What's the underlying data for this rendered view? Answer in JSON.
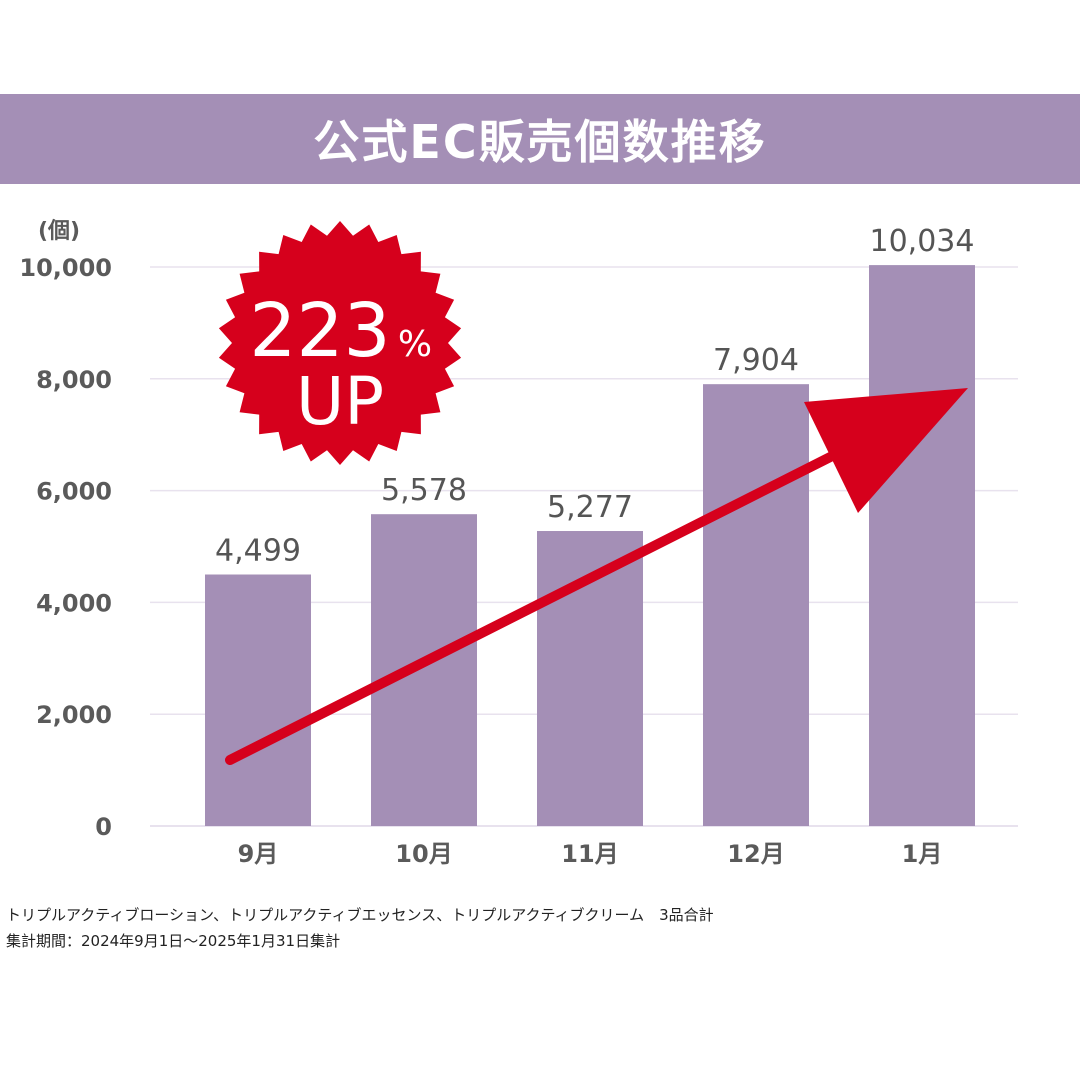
{
  "title": "公式EC販売個数推移",
  "badge": {
    "percent": "223",
    "percent_sign": "%",
    "label": "UP"
  },
  "colors": {
    "header": "#a48fb6",
    "bar": "#a48fb6",
    "accent": "#d6001c",
    "grid": "#e8e2ee",
    "text": "#5a5a5a"
  },
  "chart_data": {
    "type": "bar",
    "unit_label": "(個)",
    "categories": [
      "9月",
      "10月",
      "11月",
      "12月",
      "1月"
    ],
    "values": [
      4499,
      5578,
      5277,
      7904,
      10034
    ],
    "value_labels": [
      "4,499",
      "5,578",
      "5,277",
      "7,904",
      "10,034"
    ],
    "yticks": [
      0,
      2000,
      4000,
      6000,
      8000,
      10000
    ],
    "ytick_labels": [
      "0",
      "2,000",
      "4,000",
      "6,000",
      "8,000",
      "10,000"
    ],
    "ylim": [
      0,
      10000
    ],
    "grid": true,
    "trend_arrow": true
  },
  "notes": [
    "トリプルアクティブローション、トリプルアクティブエッセンス、トリプルアクティブクリーム　3品合計",
    "集計期間：2024年9月1日〜2025年1月31日集計"
  ]
}
